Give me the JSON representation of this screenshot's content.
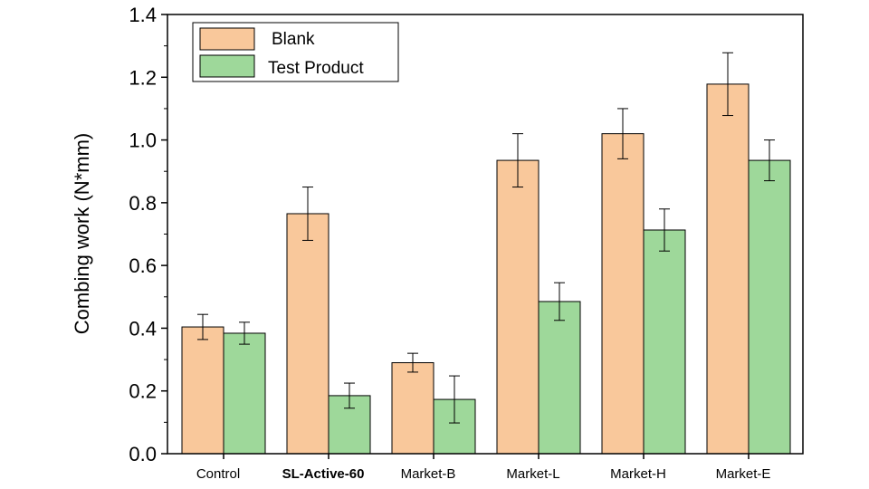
{
  "chart_data": {
    "type": "bar",
    "title": "",
    "xlabel": "",
    "ylabel": "Combing work (N*mm)",
    "ylim": [
      0,
      1.4
    ],
    "yticks": [
      "0.0",
      "0.2",
      "0.4",
      "0.6",
      "0.8",
      "1.0",
      "1.2",
      "1.4"
    ],
    "categories": [
      "Control",
      "SL-Active-60",
      "Market-B",
      "Market-L",
      "Market-H",
      "Market-E"
    ],
    "bold_category": "SL-Active-60",
    "legend_position": "top-left",
    "series": [
      {
        "name": "Blank",
        "color": "#F9C89B",
        "values": [
          0.404,
          0.765,
          0.29,
          0.935,
          1.02,
          1.178
        ],
        "errors": [
          0.04,
          0.085,
          0.03,
          0.085,
          0.08,
          0.1
        ]
      },
      {
        "name": "Test Product",
        "color": "#9ED89A",
        "values": [
          0.384,
          0.185,
          0.173,
          0.485,
          0.713,
          0.935
        ],
        "errors": [
          0.035,
          0.04,
          0.075,
          0.06,
          0.067,
          0.065
        ]
      }
    ]
  }
}
